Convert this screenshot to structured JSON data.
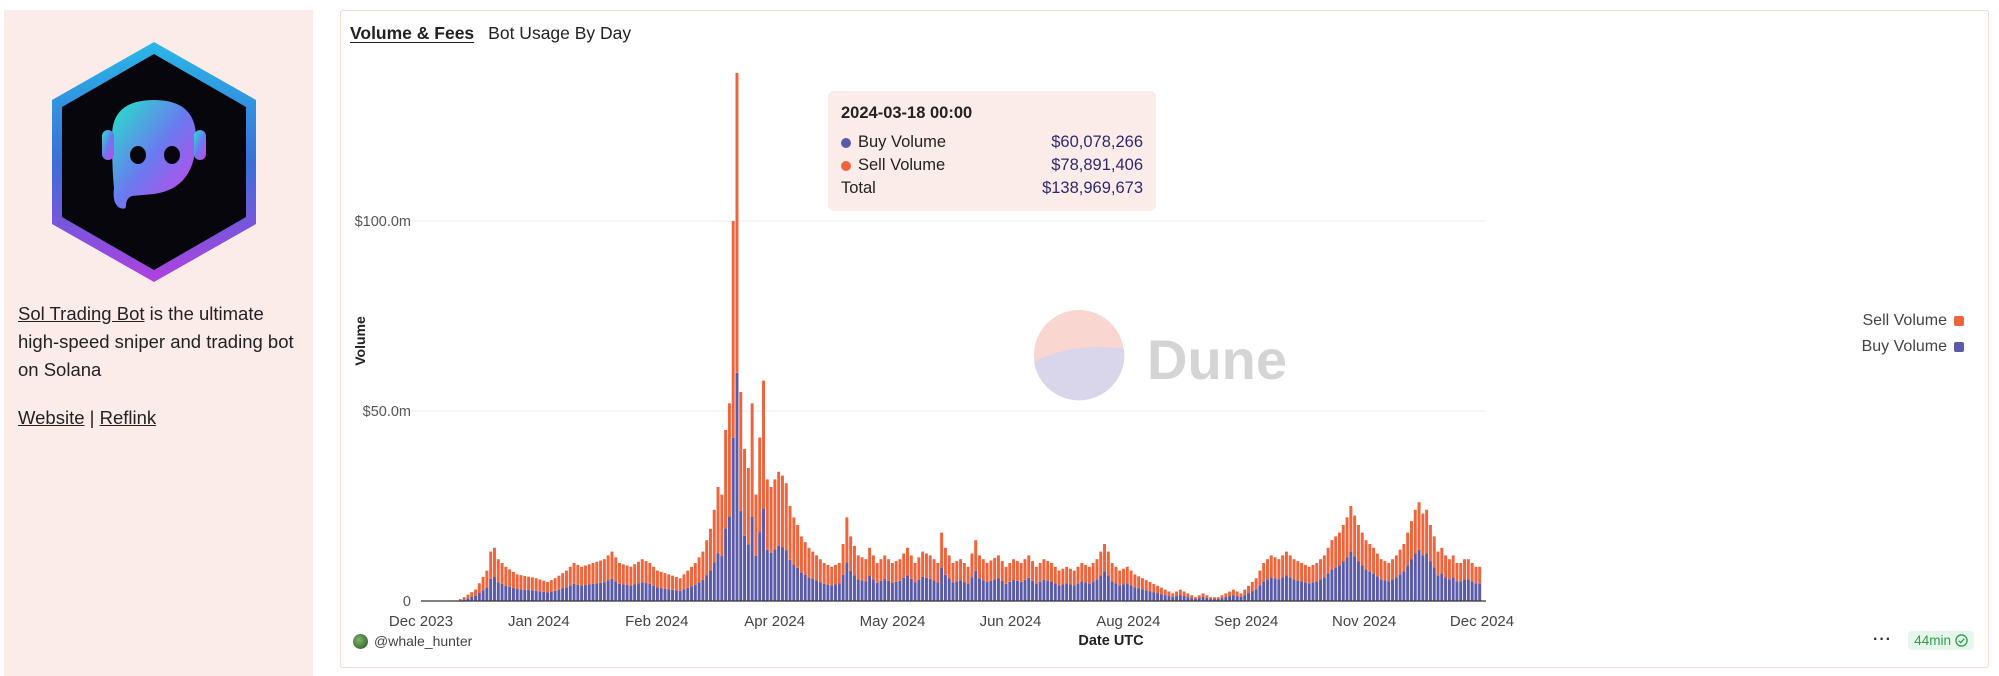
{
  "sidebar": {
    "logo_icon": "robot-hexagon-logo",
    "description_link": "Sol Trading Bot",
    "description_text": " is the ultimate high-speed sniper and trading bot on Solana",
    "website_link": "Website",
    "separator": "|",
    "reflink_link": "Reflink"
  },
  "tabs": [
    {
      "label": "Volume & Fees",
      "active": true
    },
    {
      "label": "Bot Usage By Day",
      "active": false
    }
  ],
  "tooltip": {
    "date": "2024-03-18 00:00",
    "rows": [
      {
        "label": "Buy Volume",
        "value": "$60,078,266"
      },
      {
        "label": "Sell Volume",
        "value": "$78,891,406"
      },
      {
        "label": "Total",
        "value": "$138,969,673"
      }
    ]
  },
  "watermark": "Dune",
  "footer": {
    "author": "@whale_hunter",
    "more_icon": "ellipsis-icon",
    "refresh_label": "44min",
    "refresh_icon": "check-circle-icon"
  },
  "colors": {
    "buy": "#5a5aa8",
    "sell": "#f0643c",
    "panel_bg": "#fcece9"
  },
  "chart_data": {
    "type": "bar",
    "stacked": true,
    "xlabel": "Date UTC",
    "ylabel": "Volume",
    "ylim": [
      0,
      140
    ],
    "y_unit": "millions USD",
    "y_ticks": [
      {
        "value": 0,
        "label": "0"
      },
      {
        "value": 50,
        "label": "$50.0m"
      },
      {
        "value": 100,
        "label": "$100.0m"
      }
    ],
    "x_ticks": [
      {
        "day": 0,
        "label": "Dec 2023"
      },
      {
        "day": 31,
        "label": "Jan 2024"
      },
      {
        "day": 62,
        "label": "Feb 2024"
      },
      {
        "day": 93,
        "label": "Apr 2024"
      },
      {
        "day": 124,
        "label": "May 2024"
      },
      {
        "day": 155,
        "label": "Jun 2024"
      },
      {
        "day": 186,
        "label": "Aug 2024"
      },
      {
        "day": 217,
        "label": "Sep 2024"
      },
      {
        "day": 248,
        "label": "Nov 2024"
      },
      {
        "day": 279,
        "label": "Dec 2024"
      }
    ],
    "x_domain_days": [
      0,
      279
    ],
    "legend": [
      {
        "name": "Sell Volume",
        "color": "#f0643c"
      },
      {
        "name": "Buy Volume",
        "color": "#5a5aa8"
      }
    ],
    "legend_position": "right",
    "series_keypoints": {
      "note": "approximate daily totals (millions USD) read from the chart, interpolated per day",
      "total": [
        [
          0,
          0
        ],
        [
          9,
          0
        ],
        [
          11,
          1
        ],
        [
          14,
          3
        ],
        [
          17,
          8
        ],
        [
          18,
          13
        ],
        [
          19,
          14
        ],
        [
          20,
          11
        ],
        [
          22,
          9
        ],
        [
          25,
          7
        ],
        [
          30,
          6
        ],
        [
          33,
          5
        ],
        [
          35,
          6
        ],
        [
          38,
          8
        ],
        [
          40,
          10
        ],
        [
          42,
          9
        ],
        [
          45,
          10
        ],
        [
          48,
          11
        ],
        [
          50,
          13
        ],
        [
          52,
          10
        ],
        [
          55,
          9
        ],
        [
          58,
          11
        ],
        [
          60,
          10
        ],
        [
          62,
          8
        ],
        [
          65,
          7
        ],
        [
          68,
          6
        ],
        [
          70,
          8
        ],
        [
          72,
          10
        ],
        [
          74,
          13
        ],
        [
          76,
          19
        ],
        [
          77,
          24
        ],
        [
          78,
          30
        ],
        [
          79,
          28
        ],
        [
          80,
          45
        ],
        [
          81,
          52
        ],
        [
          82,
          100
        ],
        [
          83,
          139
        ],
        [
          84,
          55
        ],
        [
          85,
          40
        ],
        [
          86,
          35
        ],
        [
          87,
          52
        ],
        [
          88,
          28
        ],
        [
          89,
          43
        ],
        [
          90,
          58
        ],
        [
          91,
          32
        ],
        [
          92,
          30
        ],
        [
          93,
          32
        ],
        [
          94,
          34
        ],
        [
          95,
          33
        ],
        [
          96,
          31
        ],
        [
          97,
          25
        ],
        [
          98,
          22
        ],
        [
          99,
          20
        ],
        [
          100,
          17
        ],
        [
          102,
          14
        ],
        [
          104,
          12
        ],
        [
          106,
          10
        ],
        [
          108,
          9
        ],
        [
          110,
          10
        ],
        [
          111,
          15
        ],
        [
          112,
          22
        ],
        [
          113,
          17
        ],
        [
          115,
          12
        ],
        [
          117,
          11
        ],
        [
          118,
          14
        ],
        [
          120,
          10
        ],
        [
          122,
          12
        ],
        [
          124,
          10
        ],
        [
          126,
          11
        ],
        [
          128,
          14
        ],
        [
          130,
          10
        ],
        [
          132,
          13
        ],
        [
          134,
          12
        ],
        [
          136,
          10
        ],
        [
          137,
          18
        ],
        [
          138,
          14
        ],
        [
          140,
          10
        ],
        [
          142,
          11
        ],
        [
          144,
          9
        ],
        [
          146,
          16
        ],
        [
          147,
          12
        ],
        [
          149,
          10
        ],
        [
          152,
          12
        ],
        [
          154,
          9
        ],
        [
          156,
          11
        ],
        [
          158,
          10
        ],
        [
          160,
          12
        ],
        [
          162,
          9
        ],
        [
          164,
          11
        ],
        [
          166,
          10
        ],
        [
          168,
          8
        ],
        [
          170,
          9
        ],
        [
          172,
          8
        ],
        [
          174,
          10
        ],
        [
          176,
          9
        ],
        [
          178,
          11
        ],
        [
          180,
          15
        ],
        [
          181,
          13
        ],
        [
          182,
          10
        ],
        [
          184,
          8
        ],
        [
          186,
          9
        ],
        [
          188,
          7
        ],
        [
          190,
          6
        ],
        [
          192,
          5
        ],
        [
          194,
          4
        ],
        [
          196,
          3
        ],
        [
          198,
          2
        ],
        [
          200,
          3
        ],
        [
          202,
          2
        ],
        [
          204,
          1
        ],
        [
          206,
          2
        ],
        [
          208,
          1
        ],
        [
          210,
          1
        ],
        [
          212,
          2
        ],
        [
          214,
          3
        ],
        [
          216,
          2
        ],
        [
          218,
          4
        ],
        [
          220,
          6
        ],
        [
          222,
          10
        ],
        [
          224,
          12
        ],
        [
          226,
          11
        ],
        [
          228,
          13
        ],
        [
          230,
          11
        ],
        [
          232,
          10
        ],
        [
          234,
          9
        ],
        [
          236,
          10
        ],
        [
          238,
          12
        ],
        [
          240,
          16
        ],
        [
          242,
          18
        ],
        [
          244,
          22
        ],
        [
          245,
          25
        ],
        [
          247,
          20
        ],
        [
          249,
          16
        ],
        [
          251,
          14
        ],
        [
          253,
          11
        ],
        [
          255,
          10
        ],
        [
          257,
          12
        ],
        [
          259,
          15
        ],
        [
          261,
          21
        ],
        [
          262,
          24
        ],
        [
          263,
          26
        ],
        [
          264,
          23
        ],
        [
          265,
          24
        ],
        [
          266,
          20
        ],
        [
          267,
          17
        ],
        [
          268,
          13
        ],
        [
          269,
          14
        ],
        [
          270,
          12
        ],
        [
          271,
          11
        ],
        [
          272,
          12
        ],
        [
          273,
          10
        ],
        [
          274,
          10
        ],
        [
          275,
          11
        ],
        [
          276,
          11
        ],
        [
          277,
          10
        ],
        [
          278,
          9
        ],
        [
          279,
          9
        ]
      ],
      "buy_share": [
        [
          0,
          0.45
        ],
        [
          60,
          0.45
        ],
        [
          78,
          0.42
        ],
        [
          83,
          0.432
        ],
        [
          90,
          0.42
        ],
        [
          120,
          0.48
        ],
        [
          180,
          0.52
        ],
        [
          279,
          0.52
        ]
      ]
    }
  }
}
